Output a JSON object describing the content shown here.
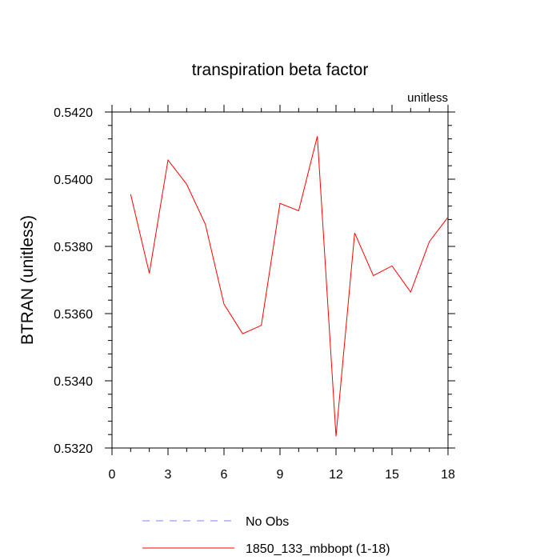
{
  "chart_data": {
    "type": "line",
    "title": "transpiration beta factor",
    "units_label": "unitless",
    "xlabel": "",
    "ylabel": "BTRAN  (unitless)",
    "xlim": [
      0,
      18
    ],
    "ylim": [
      0.532,
      0.542
    ],
    "xticks": [
      0,
      3,
      6,
      9,
      12,
      15,
      18
    ],
    "yticks": [
      0.532,
      0.534,
      0.536,
      0.538,
      0.54,
      0.542
    ],
    "ytick_labels": [
      "0.5320",
      "0.5340",
      "0.5360",
      "0.5380",
      "0.5400",
      "0.5420"
    ],
    "grid": false,
    "legend_position": "bottom",
    "series": [
      {
        "name": "1850_133_mbbopt (1-18)",
        "color": "#ff0000",
        "style": "solid",
        "x": [
          1,
          2,
          3,
          4,
          5,
          6,
          7,
          8,
          9,
          10,
          11,
          12,
          13,
          14,
          15,
          16,
          17,
          18
        ],
        "values": [
          0.53955,
          0.5372,
          0.54057,
          0.53985,
          0.53866,
          0.53628,
          0.5354,
          0.53565,
          0.53928,
          0.53906,
          0.54128,
          0.53235,
          0.5384,
          0.53713,
          0.53742,
          0.53664,
          0.53814,
          0.53887
        ]
      }
    ],
    "legend": [
      {
        "label": "No Obs",
        "color": "#8080ff",
        "style": "dashed"
      },
      {
        "label": "1850_133_mbbopt (1-18)",
        "color": "#ff0000",
        "style": "solid"
      }
    ]
  }
}
